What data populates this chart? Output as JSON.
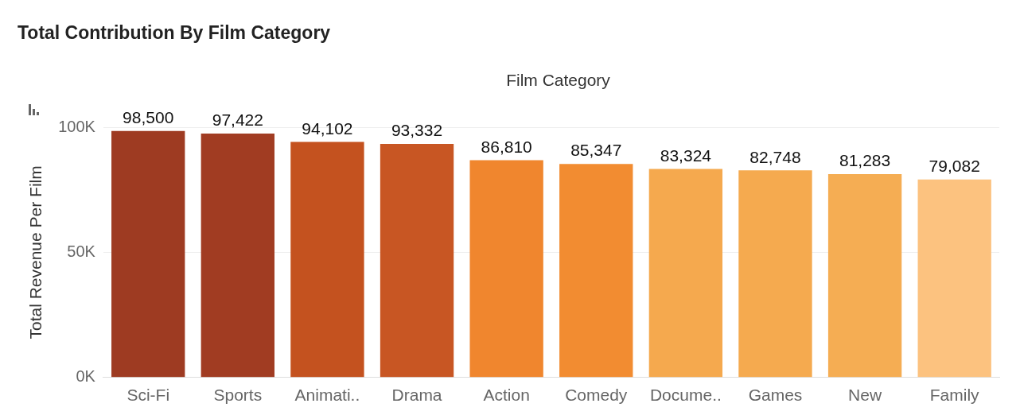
{
  "chart_data": {
    "type": "bar",
    "title": "Total Contribution By Film Category",
    "xlabel": "Film Category",
    "ylabel": "Total Revenue Per Film",
    "categories": [
      "Sci-Fi",
      "Sports",
      "Animati..",
      "Drama",
      "Action",
      "Comedy",
      "Docume..",
      "Games",
      "New",
      "Family"
    ],
    "values": [
      98500,
      97422,
      94102,
      93332,
      86810,
      85347,
      83324,
      82748,
      81283,
      79082
    ],
    "colors": [
      "#9e3b22",
      "#a13c22",
      "#c4521f",
      "#c85623",
      "#f0862e",
      "#f28c31",
      "#f5a94e",
      "#f5aa4f",
      "#f5ad53",
      "#fcc27f"
    ],
    "ylim": [
      0,
      100000
    ],
    "yticks": [
      {
        "value": 0,
        "label": "0K"
      },
      {
        "value": 50000,
        "label": "50K"
      },
      {
        "value": 100000,
        "label": "100K"
      }
    ],
    "value_labels": [
      "98,500",
      "97,422",
      "94,102",
      "93,332",
      "86,810",
      "85,347",
      "83,324",
      "82,748",
      "81,283",
      "79,082"
    ],
    "grid": "y",
    "legend": false
  }
}
